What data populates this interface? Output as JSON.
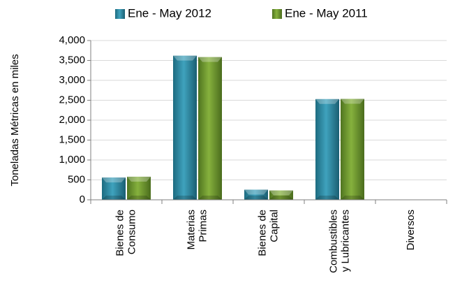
{
  "chart_data": {
    "type": "bar",
    "title": "",
    "xlabel": "",
    "ylabel": "Toneladas Métricas en miles",
    "ylim": [
      0,
      4000
    ],
    "yticks": [
      "0",
      "500",
      "1,000",
      "1,500",
      "2,000",
      "2,500",
      "3,000",
      "3,500",
      "4,000"
    ],
    "ytick_values": [
      0,
      500,
      1000,
      1500,
      2000,
      2500,
      3000,
      3500,
      4000
    ],
    "grid": true,
    "legend_position": "top",
    "categories": [
      [
        "Bienes de",
        "Consumo"
      ],
      [
        "Materias",
        "Primas"
      ],
      [
        "Bienes de",
        "Capital"
      ],
      [
        "Combustibles",
        "y Lubricantes"
      ],
      [
        "Diversos"
      ]
    ],
    "series": [
      {
        "name": "Ene - May 2012",
        "color": "#2e8ca8",
        "values": [
          560,
          3620,
          255,
          2530,
          0
        ]
      },
      {
        "name": "Ene - May 2011",
        "color": "#6f9a2e",
        "values": [
          580,
          3585,
          235,
          2535,
          0
        ]
      }
    ]
  }
}
